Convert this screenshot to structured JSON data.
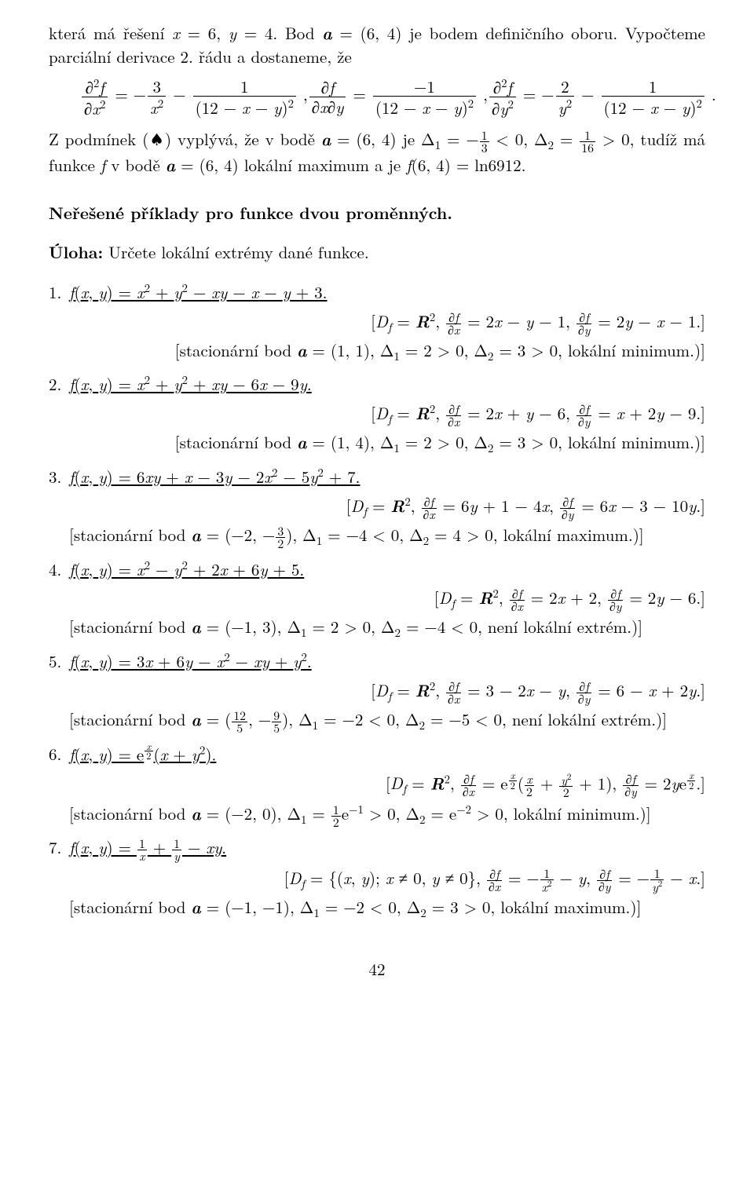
{
  "page_number": "42",
  "intro": {
    "line1": "která má řešení x = 6, y = 4. Bod  a  = (6, 4) je bodem definičního oboru. Vypočteme parciální derivace 2. řádu a dostaneme, že",
    "eq1_lhs": "∂²f",
    "eq1_lhsd": "∂x²",
    "eq1_rhs_a_num": "3",
    "eq1_rhs_a_den": "x²",
    "eq1_rhs_b_num": "1",
    "eq1_rhs_b_den": "(12 − x − y)²",
    "eq2_lhs": "∂f",
    "eq2_lhsd": "∂x∂y",
    "eq2_rhs_num": "−1",
    "eq2_rhs_den": "(12 − x − y)²",
    "eq3_lhs": "∂²f",
    "eq3_lhsd": "∂y²",
    "eq3_rhs_a_num": "2",
    "eq3_rhs_a_den": "y²",
    "eq3_rhs_b_num": "1",
    "eq3_rhs_b_den": "(12 − x − y)²",
    "line3a": "Z podmínek (♠) vyplývá, že v bodě  a  = (6, 4) je Δ₁ = −",
    "line3b": " < 0, Δ₂ = ",
    "line3c": " > 0, tudíž má funkce  f  v bodě  a  = (6, 4) lokální maximum a je  f(6, 4) = ln6912.",
    "f13_num": "1",
    "f13_den": "3",
    "f116_num": "1",
    "f116_den": "16"
  },
  "headings": {
    "h1": "Neřešené příklady pro funkce dvou proměnných.",
    "task": "Úloha:",
    "task_rest": " Určete lokální extrémy dané funkce."
  },
  "items": [
    {
      "n": "1.",
      "fn": "f(x, y) = x² + y² − xy − x − y + 3.",
      "ans1": "[D_f = R², ∂f/∂x = 2x − y − 1, ∂f/∂y = 2y − x − 1.]",
      "ans2": "[stacionární bod a = (1, 1), Δ₁ = 2 > 0, Δ₂ = 3 > 0, lokální minimum.)]"
    },
    {
      "n": "2.",
      "fn": "f(x, y) = x² + y² + xy − 6x − 9y.",
      "ans1": "[D_f = R², ∂f/∂x = 2x + y − 6, ∂f/∂y = x + 2y − 9.]",
      "ans2": "[stacionární bod a = (1, 4), Δ₁ = 2 > 0, Δ₂ = 3 > 0, lokální minimum.)]"
    },
    {
      "n": "3.",
      "fn": "f(x, y) = 6xy + x − 3y − 2x² − 5y² + 7.",
      "ans1": "[D_f = R², ∂f/∂x = 6y + 1 − 4x, ∂f/∂y = 6x − 3 − 10y.]",
      "ans2_pre": "[stacionární bod a = (−2, −",
      "ans2_post": "), Δ₁ = −4 < 0, Δ₂ = 4 > 0, lokální maximum.)]",
      "frac_num": "3",
      "frac_den": "2"
    },
    {
      "n": "4.",
      "fn": "f(x, y) = x² − y² + 2x + 6y + 5.",
      "ans1": "[D_f = R², ∂f/∂x = 2x + 2, ∂f/∂y = 2y − 6.]",
      "ans2": "[stacionární bod a = (−1, 3), Δ₁ = 2 > 0, Δ₂ = −4 < 0, není lokální extrém.)]"
    },
    {
      "n": "5.",
      "fn": "f(x, y) = 3x + 6y − x² − xy + y².",
      "ans1": "[D_f = R², ∂f/∂x = 3 − 2x − y, ∂f/∂y = 6 − x + 2y.]",
      "ans2_pre": "[stacionární bod a = (",
      "ans2_mid": ", −",
      "ans2_post": "), Δ₁ = −2 < 0, Δ₂ = −5 < 0, není lokální extrém.)]",
      "frac1_num": "12",
      "frac1_den": "5",
      "frac2_num": "9",
      "frac2_den": "5"
    },
    {
      "n": "6.",
      "fn_pre": "f(x, y) = e",
      "fn_exp_num": "x",
      "fn_exp_den": "2",
      "fn_post": "(x + y²).",
      "ans1_pre": "[D_f = R², ∂f/∂x = e",
      "ans1_mid1": "(",
      "ans1_fx_num": "x",
      "ans1_fx_den": "2",
      "ans1_plus": " + ",
      "ans1_fy_num": "y²",
      "ans1_fy_den": "2",
      "ans1_mid2": " + 1), ∂f/∂y = 2ye",
      "ans1_post": ".]",
      "ans2_pre": "[stacionární bod a = (−2, 0), Δ₁ = ",
      "ans2_d1_num": "1",
      "ans2_d1_den": "2",
      "ans2_mid": "e⁻¹ > 0, Δ₂ = e⁻² > 0, lokální minimum.)]"
    },
    {
      "n": "7.",
      "fn_pre": "f(x, y) = ",
      "fn_a_num": "1",
      "fn_a_den": "x",
      "fn_plus": " + ",
      "fn_b_num": "1",
      "fn_b_den": "y",
      "fn_post": " − xy.",
      "ans1_pre": "[D_f = {(x, y); x ≠ 0, y ≠ 0}, ∂f/∂x = −",
      "ans1_a_num": "1",
      "ans1_a_den": "x²",
      "ans1_mid": " − y, ∂f/∂y = −",
      "ans1_b_num": "1",
      "ans1_b_den": "y²",
      "ans1_post": " − x.]",
      "ans2": "[stacionární bod a = (−1, −1), Δ₁ = −2 < 0, Δ₂ = 3 > 0, lokální maximum.)]"
    }
  ]
}
